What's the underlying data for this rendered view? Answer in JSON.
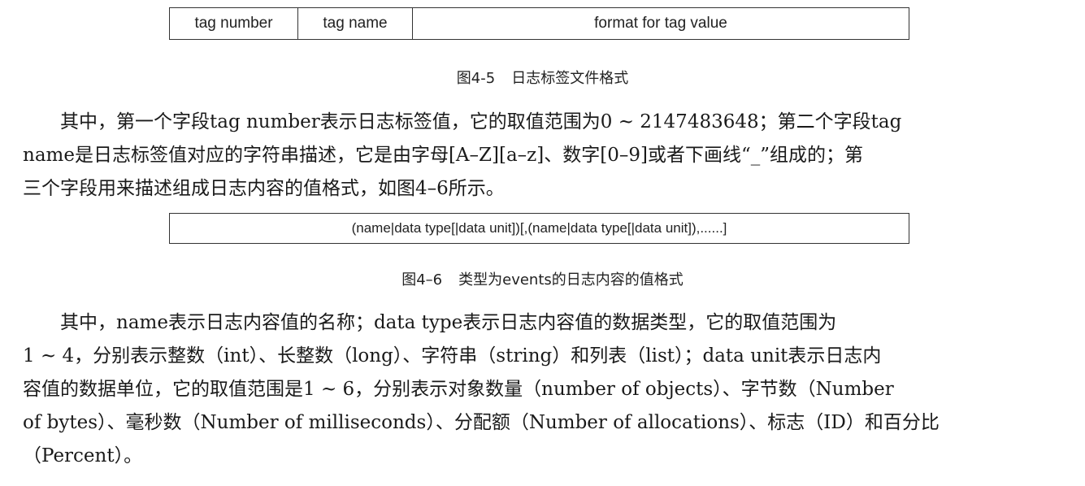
{
  "figure_4_5": {
    "cells": [
      "tag number",
      "tag name",
      "format for tag value"
    ],
    "caption_number": "图4-5",
    "caption_text": "日志标签文件格式"
  },
  "paragraph_1": {
    "lines": [
      "　　其中，第一个字段tag number表示日志标签值，它的取值范围为0 ~ 2147483648；第二个字段tag",
      "name是日志标签值对应的字符串描述，它是由字母[A–Z][a–z]、数字[0–9]或者下画线“_”组成的；第",
      "三个字段用来描述组成日志内容的值格式，如图4–6所示。"
    ]
  },
  "figure_4_6": {
    "cell": "(name|data type[|data unit])[,(name|data type[|data unit]),......]",
    "caption_number": "图4–6",
    "caption_text": "类型为events的日志内容的值格式"
  },
  "paragraph_2": {
    "lines": [
      "　　其中，name表示日志内容值的名称；data type表示日志内容值的数据类型，它的取值范围为",
      "1 ~ 4，分别表示整数（int）、长整数（long）、字符串（string）和列表（list）；data unit表示日志内",
      "容值的数据单位，它的取值范围是1 ~ 6，分别表示对象数量（number of objects）、字节数（Number",
      "of bytes）、毫秒数（Number of milliseconds）、分配额（Number of allocations）、标志（ID）和百分比",
      "（Percent）。"
    ]
  }
}
